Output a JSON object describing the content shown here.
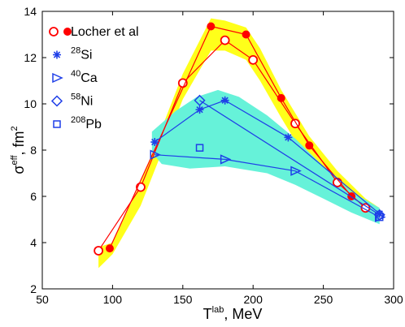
{
  "chart_data": {
    "type": "line",
    "xlabel": {
      "main": "T",
      "sup": "lab",
      "rest": ", MeV"
    },
    "ylabel": {
      "main": "σ",
      "sup": "eff",
      "rest": ", fm",
      "sup2": "2"
    },
    "xlim": [
      50,
      300
    ],
    "ylim": [
      2,
      14
    ],
    "xticks": [
      "50",
      "100",
      "150",
      "200",
      "250",
      "300"
    ],
    "yticks": [
      "2",
      "4",
      "6",
      "8",
      "10",
      "12",
      "14"
    ],
    "grid": false,
    "legend_position": "top-left",
    "colors": {
      "red": "#ff0000",
      "blue": "#1f3fe8",
      "yellow_band": "#ffff1a",
      "cyan_band": "#66f2d9"
    },
    "bands": [
      {
        "name": "yellow-band",
        "color": "#ffff1a",
        "upper": [
          [
            90,
            3.8
          ],
          [
            100,
            4.0
          ],
          [
            120,
            6.6
          ],
          [
            150,
            11.3
          ],
          [
            170,
            13.7
          ],
          [
            180,
            13.6
          ],
          [
            195,
            13.3
          ],
          [
            205,
            12.4
          ],
          [
            220,
            10.6
          ],
          [
            240,
            8.6
          ],
          [
            260,
            7.1
          ],
          [
            280,
            5.9
          ],
          [
            290,
            5.5
          ]
        ],
        "lower": [
          [
            290,
            4.9
          ],
          [
            280,
            5.2
          ],
          [
            260,
            6.1
          ],
          [
            240,
            7.4
          ],
          [
            220,
            9.4
          ],
          [
            205,
            11.0
          ],
          [
            195,
            11.9
          ],
          [
            180,
            12.3
          ],
          [
            170,
            12.3
          ],
          [
            150,
            10.2
          ],
          [
            120,
            5.6
          ],
          [
            100,
            3.5
          ],
          [
            90,
            2.9
          ]
        ]
      },
      {
        "name": "cyan-band",
        "color": "#66f2d9",
        "upper": [
          [
            128,
            8.8
          ],
          [
            145,
            9.7
          ],
          [
            160,
            10.3
          ],
          [
            175,
            10.6
          ],
          [
            190,
            10.3
          ],
          [
            210,
            9.5
          ],
          [
            230,
            8.5
          ],
          [
            250,
            7.3
          ],
          [
            270,
            6.2
          ],
          [
            290,
            5.5
          ]
        ],
        "lower": [
          [
            290,
            4.8
          ],
          [
            270,
            5.3
          ],
          [
            250,
            5.9
          ],
          [
            230,
            6.5
          ],
          [
            210,
            7.0
          ],
          [
            180,
            7.3
          ],
          [
            155,
            7.2
          ],
          [
            135,
            7.4
          ],
          [
            128,
            7.9
          ]
        ]
      }
    ],
    "series": [
      {
        "name": "Locher et al",
        "marker": "circle-open",
        "color": "#ff0000",
        "line": true,
        "points": [
          [
            90,
            3.65
          ],
          [
            120,
            6.4
          ],
          [
            150,
            10.9
          ],
          [
            180,
            12.75
          ],
          [
            200,
            11.9
          ],
          [
            230,
            9.15
          ],
          [
            260,
            6.6
          ],
          [
            280,
            5.5
          ]
        ]
      },
      {
        "name": "Locher et al",
        "marker": "circle-filled",
        "color": "#ff0000",
        "line": true,
        "points": [
          [
            98,
            3.75
          ],
          [
            170,
            13.35
          ],
          [
            195,
            13.0
          ],
          [
            220,
            10.25
          ],
          [
            240,
            8.2
          ],
          [
            270,
            6.0
          ]
        ]
      },
      {
        "name": "28Si",
        "marker": "asterisk",
        "color": "#1f3fe8",
        "line": true,
        "points": [
          [
            130,
            8.35
          ],
          [
            162,
            9.75
          ],
          [
            180,
            10.15
          ],
          [
            225,
            8.55
          ],
          [
            290,
            5.25
          ]
        ]
      },
      {
        "name": "40Ca",
        "marker": "triangle-right",
        "color": "#1f3fe8",
        "line": true,
        "points": [
          [
            130,
            7.8
          ],
          [
            180,
            7.6
          ],
          [
            230,
            7.1
          ],
          [
            290,
            5.1
          ]
        ]
      },
      {
        "name": "58Ni",
        "marker": "diamond",
        "color": "#1f3fe8",
        "line": true,
        "points": [
          [
            162,
            10.15
          ],
          [
            290,
            5.2
          ]
        ]
      },
      {
        "name": "208Pb",
        "marker": "square",
        "color": "#1f3fe8",
        "line": false,
        "points": [
          [
            162,
            8.1
          ],
          [
            290,
            5.1
          ]
        ]
      }
    ],
    "legend": [
      {
        "marker": "circle-pair",
        "color": "#ff0000",
        "text": "Locher et al",
        "sup": ""
      },
      {
        "marker": "asterisk",
        "color": "#1f3fe8",
        "text": "Si",
        "sup": "28"
      },
      {
        "marker": "triangle-right",
        "color": "#1f3fe8",
        "text": "Ca",
        "sup": "40"
      },
      {
        "marker": "diamond",
        "color": "#1f3fe8",
        "text": "Ni",
        "sup": "58"
      },
      {
        "marker": "square",
        "color": "#1f3fe8",
        "text": "Pb",
        "sup": "208"
      }
    ]
  }
}
